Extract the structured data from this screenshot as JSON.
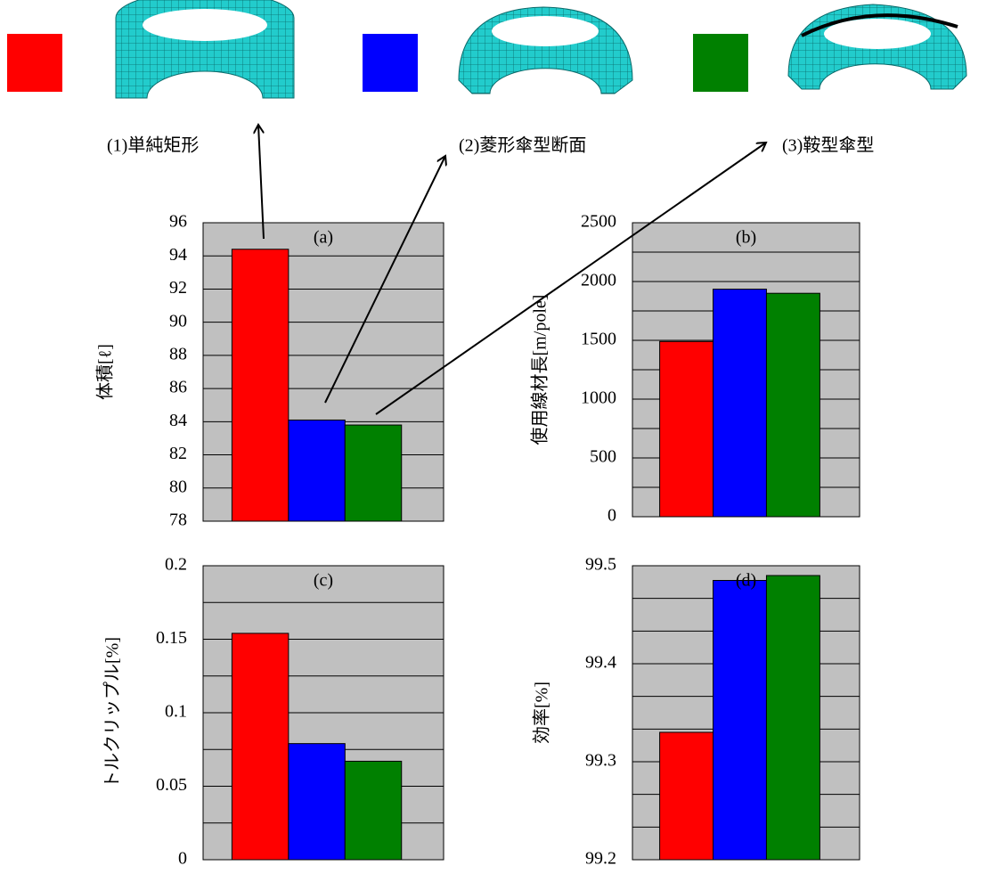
{
  "legend": {
    "items": [
      {
        "label": "(1)単純矩形",
        "color": "#ff0000"
      },
      {
        "label": "(2)菱形傘型断面",
        "color": "#0000ff"
      },
      {
        "label": "(3)鞍型傘型",
        "color": "#008000"
      }
    ]
  },
  "chart_data": [
    {
      "type": "bar",
      "title": "(a)",
      "ylabel": "体積[ℓ]",
      "values": [
        94.4,
        84.1,
        83.8
      ],
      "colors": [
        "#ff0000",
        "#0000ff",
        "#008000"
      ],
      "ylim": [
        78,
        96
      ],
      "yticks": [
        78,
        80,
        82,
        84,
        86,
        88,
        90,
        92,
        94,
        96
      ],
      "grid": true,
      "grid_subdivisions": 1
    },
    {
      "type": "bar",
      "title": "(b)",
      "ylabel": "使用線材長[m/pole]",
      "values": [
        1490,
        1935,
        1900
      ],
      "colors": [
        "#ff0000",
        "#0000ff",
        "#008000"
      ],
      "ylim": [
        0,
        2500
      ],
      "yticks": [
        0,
        500,
        1000,
        1500,
        2000,
        2500
      ],
      "grid": true,
      "grid_subdivisions": 2
    },
    {
      "type": "bar",
      "title": "(c)",
      "ylabel": "トルクリップル[%]",
      "values": [
        0.154,
        0.079,
        0.067
      ],
      "colors": [
        "#ff0000",
        "#0000ff",
        "#008000"
      ],
      "ylim": [
        0,
        0.2
      ],
      "yticks": [
        0,
        0.05,
        0.1,
        0.15,
        0.2
      ],
      "grid": true,
      "grid_subdivisions": 2
    },
    {
      "type": "bar",
      "title": "(d)",
      "ylabel": "効率[%]",
      "values": [
        99.33,
        99.485,
        99.49
      ],
      "colors": [
        "#ff0000",
        "#0000ff",
        "#008000"
      ],
      "ylim": [
        99.2,
        99.5
      ],
      "yticks": [
        99.2,
        99.3,
        99.4,
        99.5
      ],
      "grid": true,
      "grid_subdivisions": 3
    }
  ]
}
